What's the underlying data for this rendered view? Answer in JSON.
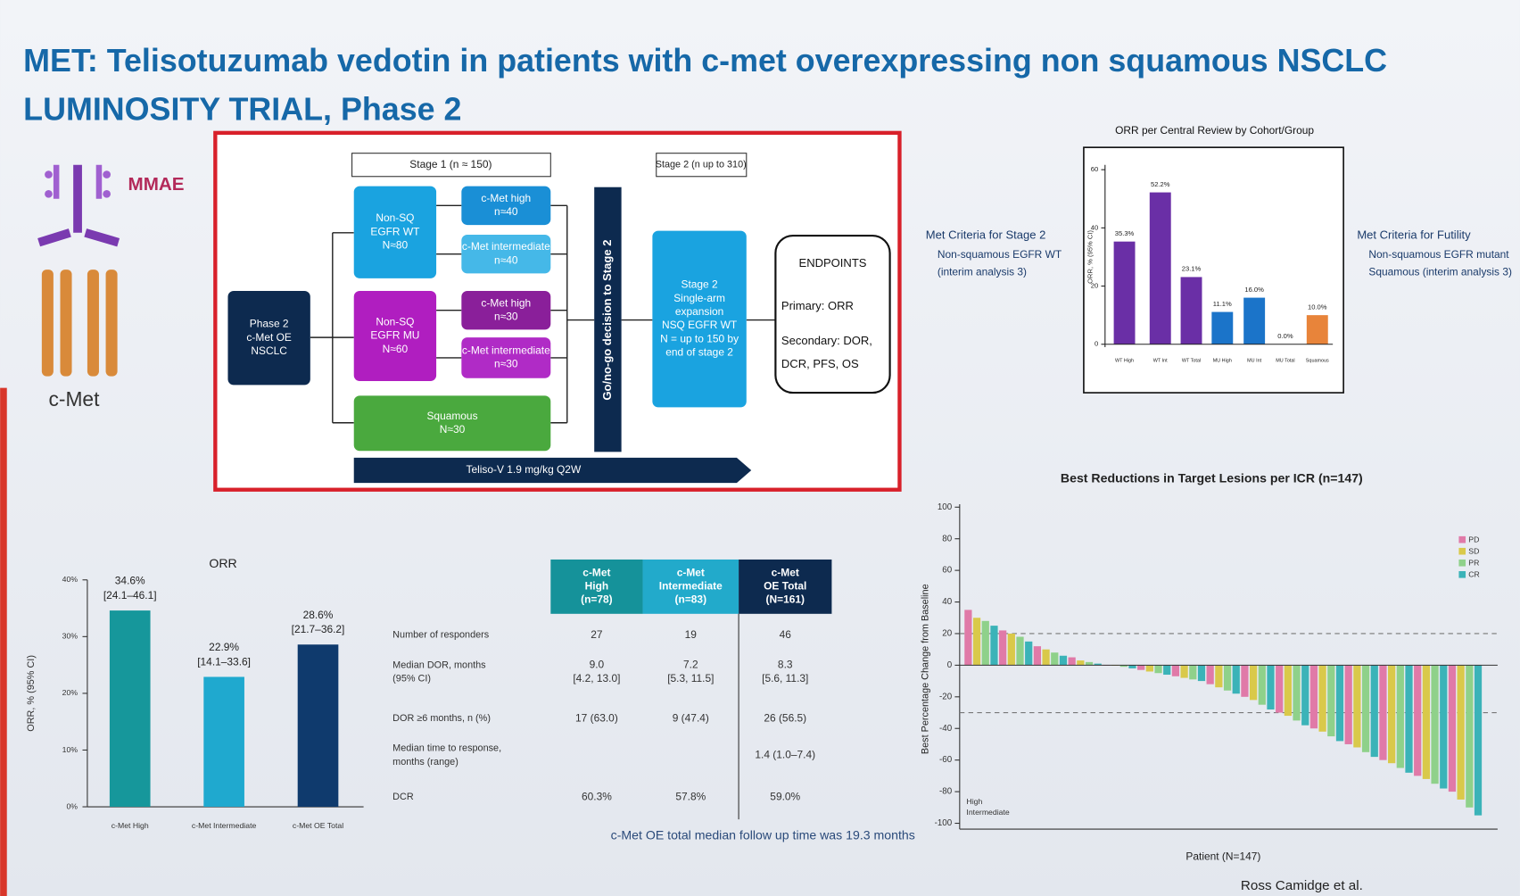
{
  "header": {
    "title_line1": "MET: Telisotuzumab vedotin in patients with c-met overexpressing non squamous NSCLC",
    "title_line2": "LUMINOSITY TRIAL, Phase 2"
  },
  "drug": {
    "payload": "MMAE",
    "target": "c-Met"
  },
  "schema": {
    "stage1_label": "Stage 1 (n ≈ 150)",
    "stage2_label": "Stage 2 (n up to 310)",
    "boxes": [
      {
        "lines": [
          "Phase 2",
          "c-Met OE",
          "NSCLC"
        ]
      },
      {
        "lines": [
          "Non-SQ",
          "EGFR WT",
          "N≈80"
        ]
      },
      {
        "lines": [
          "c-Met high",
          "n≈40"
        ]
      },
      {
        "lines": [
          "c-Met intermediate",
          "n≈40"
        ]
      },
      {
        "lines": [
          "Non-SQ",
          "EGFR MU",
          "N≈60"
        ]
      },
      {
        "lines": [
          "c-Met high",
          "n≈30"
        ]
      },
      {
        "lines": [
          "c-Met intermediate",
          "n≈30"
        ]
      },
      {
        "lines": [
          "Squamous",
          "N≈30"
        ]
      },
      {
        "lines": [
          "Stage 2",
          "Single-arm",
          "expansion",
          "NSQ EGFR WT",
          "N = up to 150 by",
          "end of stage 2"
        ]
      }
    ],
    "decision": "Go/no-go decision to Stage 2",
    "treatment": "Teliso-V 1.9 mg/kg Q2W",
    "endpoints": {
      "title": "ENDPOINTS",
      "primary": "Primary: ORR",
      "secondary_lines": [
        "Secondary: DOR,",
        "DCR, PFS, OS"
      ]
    }
  },
  "criteria": {
    "stage2": {
      "title": "Met Criteria for Stage 2",
      "lines": [
        "Non-squamous EGFR WT",
        "(interim analysis 3)"
      ]
    },
    "futility": {
      "title": "Met Criteria for Futility",
      "lines": [
        "Non-squamous EGFR mutant",
        "Squamous (interim analysis 3)"
      ]
    }
  },
  "cohort_chart": {
    "type": "bar",
    "title": "ORR per Central Review by Cohort/Group",
    "y_label": "ORR, % (95% CI)",
    "categories": [
      "WT High",
      "WT Int",
      "WT Total",
      "MU High",
      "MU Int",
      "MU Total",
      "Squamous"
    ],
    "values": [
      35.3,
      52.2,
      23.1,
      11.1,
      16.0,
      0,
      10.0
    ],
    "value_labels": [
      "35.3%",
      "52.2%",
      "23.1%",
      "11.1%",
      "16.0%",
      "0.0%",
      "10.0%"
    ],
    "colors": [
      "#6a2fa6",
      "#6a2fa6",
      "#6a2fa6",
      "#1b74c9",
      "#1b74c9",
      "#9a9a9a",
      "#e8843a"
    ],
    "ylim": [
      0,
      60
    ],
    "yticks": [
      0,
      20,
      40,
      60
    ]
  },
  "orr_chart": {
    "type": "bar",
    "title": "ORR",
    "y_label": "ORR, % (95% CI)",
    "categories": [
      "c-Met High",
      "c-Met Intermediate",
      "c-Met OE Total"
    ],
    "values": [
      34.6,
      22.9,
      28.6
    ],
    "value_labels": [
      "34.6%",
      "22.9%",
      "28.6%"
    ],
    "ci_labels": [
      "[24.1–46.1]",
      "[14.1–33.6]",
      "[21.7–36.2]"
    ],
    "colors": [
      "#16979b",
      "#1fa9cf",
      "#0f3a6d"
    ],
    "ylim": [
      0,
      40
    ],
    "yticks": [
      {
        "value": 0,
        "label": "0%"
      },
      {
        "value": 10,
        "label": "10%"
      },
      {
        "value": 20,
        "label": "20%"
      },
      {
        "value": 30,
        "label": "30%"
      },
      {
        "value": 40,
        "label": "40%"
      }
    ]
  },
  "table": {
    "header": [
      [
        "c-Met",
        "High",
        "(n=78)"
      ],
      [
        "c-Met",
        "Intermediate",
        "(n=83)"
      ],
      [
        "c-Met",
        "OE Total",
        "(N=161)"
      ]
    ],
    "rows": [
      {
        "label": [
          "Number of responders"
        ],
        "cells": [
          [
            "27"
          ],
          [
            "19"
          ],
          [
            "46"
          ]
        ]
      },
      {
        "label": [
          "Median DOR, months",
          "(95% CI)"
        ],
        "cells": [
          [
            "9.0",
            "[4.2, 13.0]"
          ],
          [
            "7.2",
            "[5.3, 11.5]"
          ],
          [
            "8.3",
            "[5.6, 11.3]"
          ]
        ]
      },
      {
        "label": [
          "DOR ≥6 months, n (%)"
        ],
        "cells": [
          [
            "17 (63.0)"
          ],
          [
            "9 (47.4)"
          ],
          [
            "26 (56.5)"
          ]
        ]
      },
      {
        "label": [
          "Median time to response,",
          "months (range)"
        ],
        "cells": [
          [],
          [],
          [
            "1.4 (1.0–7.4)"
          ]
        ]
      },
      {
        "label": [
          "DCR"
        ],
        "cells": [
          [
            "60.3%"
          ],
          [
            "57.8%"
          ],
          [
            "59.0%"
          ]
        ]
      }
    ]
  },
  "footnote": "c-Met OE total median follow up time was 19.3 months",
  "waterfall": {
    "type": "bar",
    "title": "Best Reductions in Target Lesions per ICR (n=147)",
    "y_label": "Best Percentage Change from Baseline",
    "x_label": "Patient (N=147)",
    "ylim": [
      -100,
      100
    ],
    "yticks": [
      -100,
      -80,
      -60,
      -40,
      -20,
      0,
      20,
      40,
      60,
      80,
      100
    ],
    "reference_lines": [
      20,
      -30
    ],
    "values": [
      35,
      30,
      28,
      25,
      22,
      20,
      18,
      15,
      12,
      10,
      8,
      6,
      5,
      3,
      2,
      1,
      0,
      0,
      -1,
      -2,
      -3,
      -4,
      -5,
      -6,
      -7,
      -8,
      -9,
      -10,
      -12,
      -14,
      -16,
      -18,
      -20,
      -22,
      -25,
      -28,
      -30,
      -32,
      -35,
      -38,
      -40,
      -42,
      -45,
      -48,
      -50,
      -52,
      -55,
      -58,
      -60,
      -62,
      -65,
      -68,
      -70,
      -72,
      -75,
      -78,
      -80,
      -85,
      -90,
      -95
    ],
    "legend": [
      {
        "name": "PD",
        "color": "#e07aa8"
      },
      {
        "name": "SD",
        "color": "#d9c94a"
      },
      {
        "name": "PR",
        "color": "#8fd18a"
      },
      {
        "name": "CR",
        "color": "#3bb3b8"
      }
    ],
    "group_labels": [
      "High",
      "Intermediate"
    ]
  },
  "citation": "Ross Camidge et al."
}
